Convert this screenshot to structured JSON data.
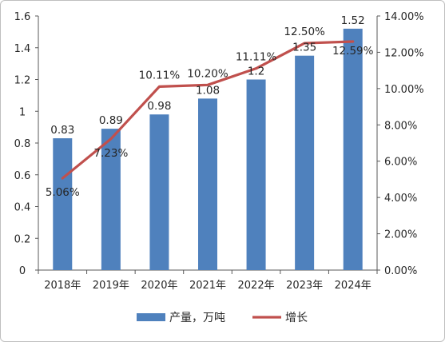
{
  "chart_data": {
    "type": "bar",
    "categories": [
      "2018年",
      "2019年",
      "2020年",
      "2021年",
      "2022年",
      "2023年",
      "2024年"
    ],
    "series": [
      {
        "name": "产量，万吨",
        "type": "bar",
        "axis": "left",
        "color": "#4f81bd",
        "values": [
          0.83,
          0.89,
          0.98,
          1.08,
          1.2,
          1.35,
          1.52
        ],
        "labels": [
          "0.83",
          "0.89",
          "0.98",
          "1.08",
          "1.2",
          "1.35",
          "1.52"
        ]
      },
      {
        "name": "增长",
        "type": "line",
        "axis": "right",
        "color": "#c0504d",
        "values": [
          5.06,
          7.23,
          10.11,
          10.2,
          11.11,
          12.5,
          12.59
        ],
        "labels": [
          "5.06%",
          "7.23%",
          "10.11%",
          "10.20%",
          "11.11%",
          "12.50%",
          "12.59%"
        ]
      }
    ],
    "y_left": {
      "ylim": [
        0,
        1.6
      ],
      "ticks": [
        0,
        0.2,
        0.4,
        0.6,
        0.8,
        1,
        1.2,
        1.4,
        1.6
      ],
      "tick_labels": [
        "0",
        "0.2",
        "0.4",
        "0.6",
        "0.8",
        "1",
        "1.2",
        "1.4",
        "1.6"
      ]
    },
    "y_right": {
      "ylim": [
        0,
        14
      ],
      "ticks": [
        0,
        2,
        4,
        6,
        8,
        10,
        12,
        14
      ],
      "tick_labels": [
        "0.00%",
        "2.00%",
        "4.00%",
        "6.00%",
        "8.00%",
        "10.00%",
        "12.00%",
        "14.00%"
      ]
    },
    "grid": false,
    "legend_position": "bottom",
    "title": "",
    "xlabel": "",
    "ylabel": ""
  }
}
